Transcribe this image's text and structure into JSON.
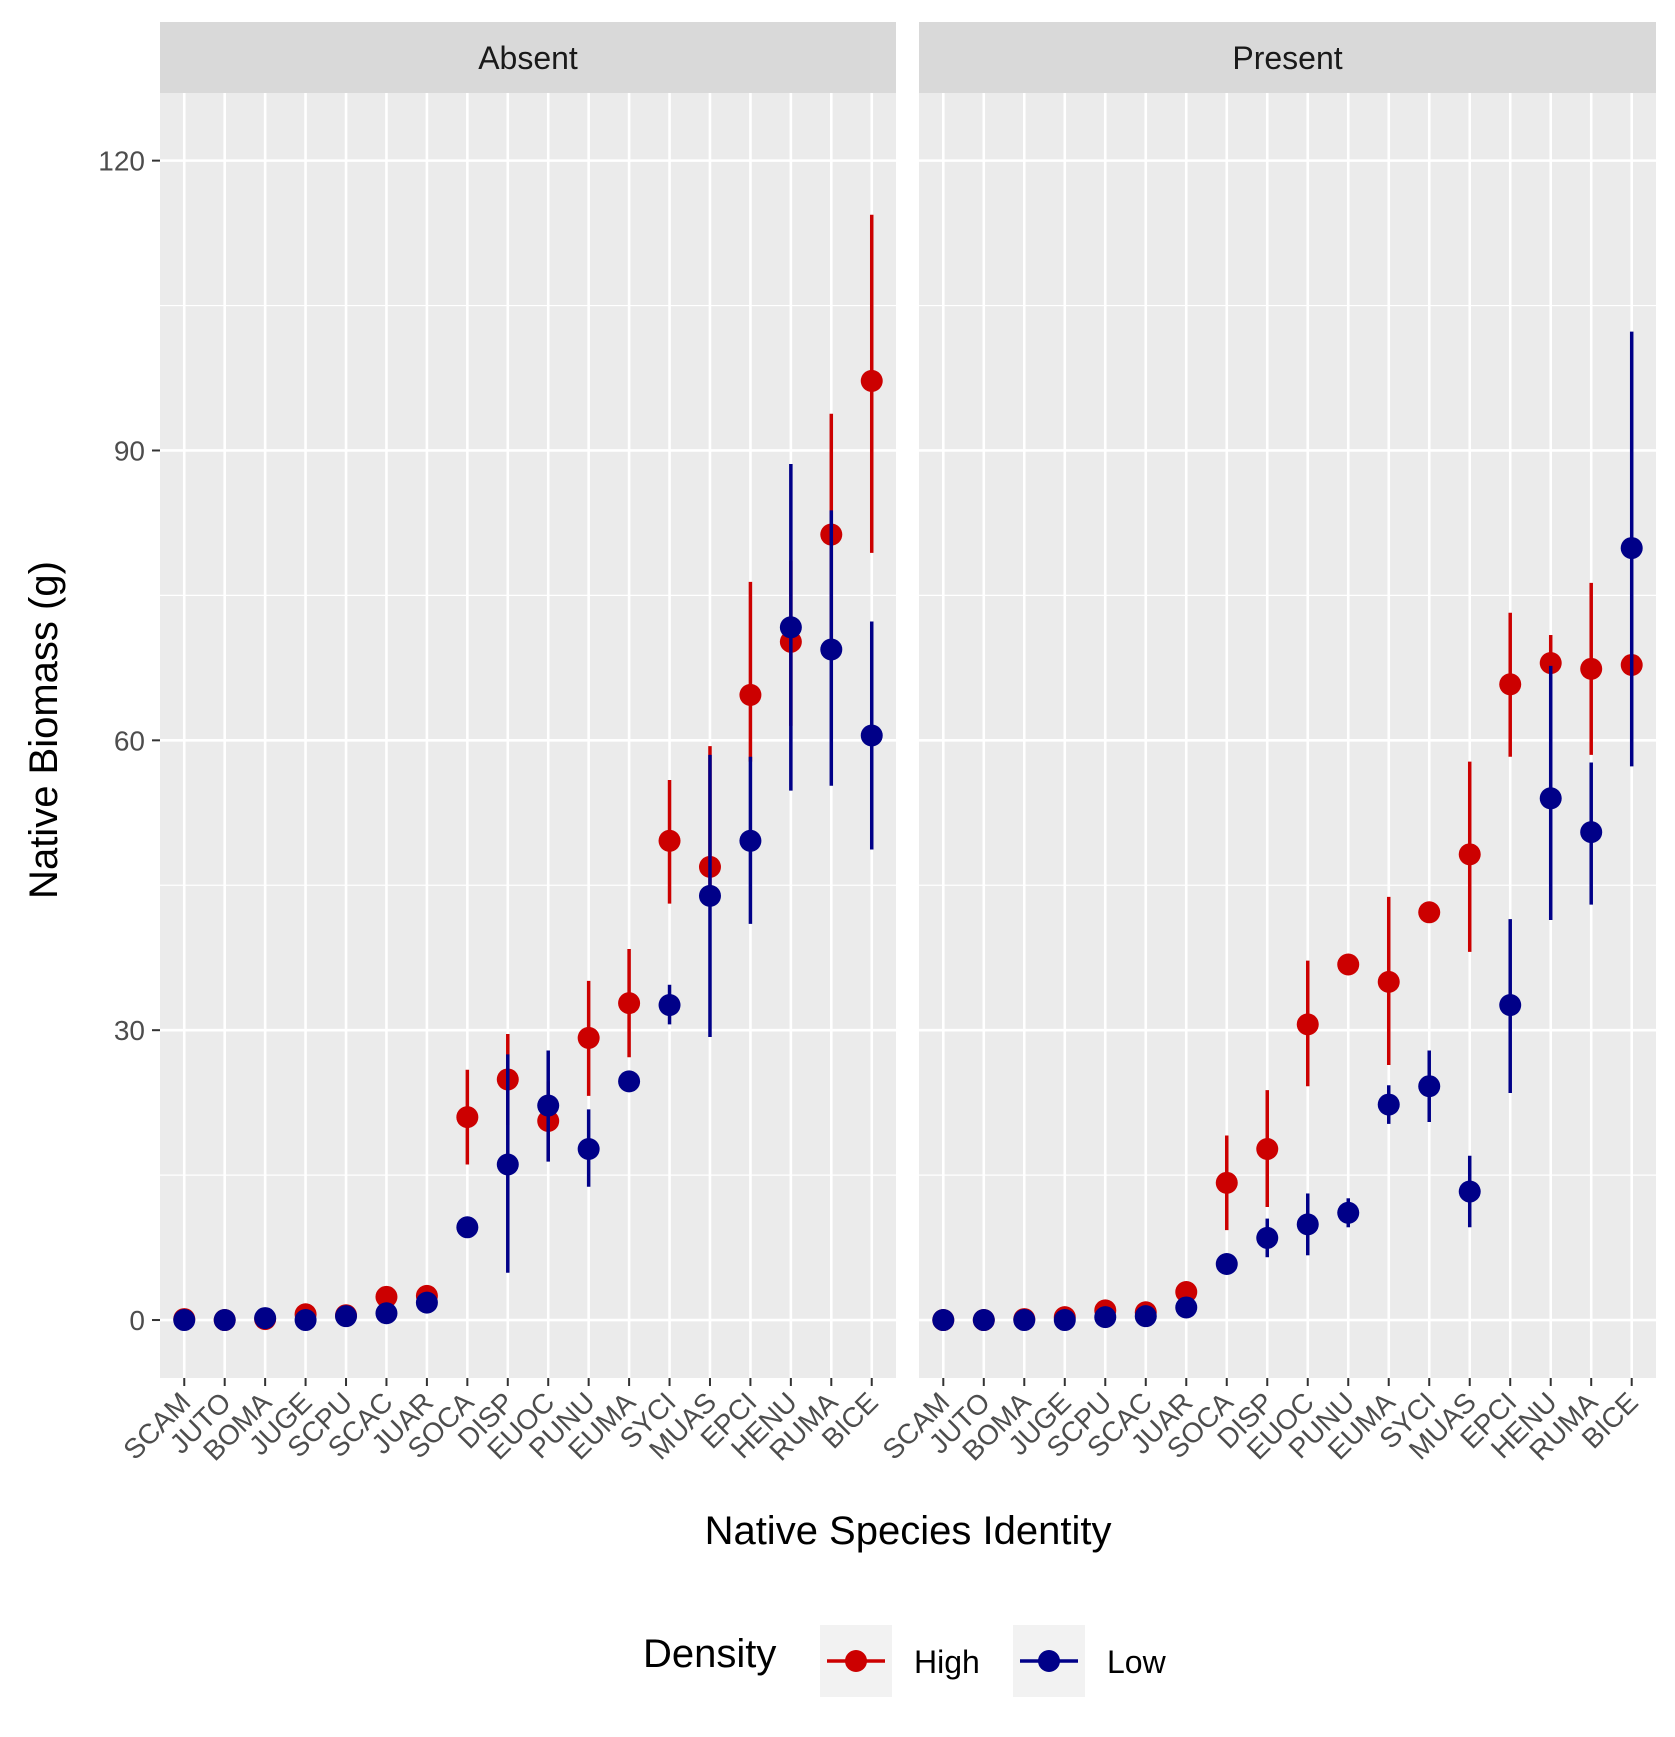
{
  "chart_data": {
    "type": "scatter",
    "ylabel": "Native Biomass (g)",
    "xlabel": "Native Species Identity",
    "ylim": [
      -6,
      127
    ],
    "yticks": [
      0,
      30,
      60,
      90,
      120
    ],
    "grid": true,
    "legend": {
      "title": "Density",
      "position": "bottom"
    },
    "categories": [
      "SCAM",
      "JUTO",
      "BOMA",
      "JUGE",
      "SCPU",
      "SCAC",
      "JUAR",
      "SOCA",
      "DISP",
      "EUOC",
      "PUNU",
      "EUMA",
      "SYCI",
      "MUAS",
      "EPCI",
      "HENU",
      "RUMA",
      "BICE"
    ],
    "colors": {
      "High": "#cc0000",
      "Low": "#000088"
    },
    "panels": [
      {
        "label": "Absent",
        "series": [
          {
            "name": "High",
            "values": [
              0.1,
              0.0,
              0.1,
              0.6,
              0.5,
              2.4,
              2.5,
              21.0,
              24.9,
              20.6,
              29.2,
              32.8,
              49.6,
              46.9,
              64.7,
              70.2,
              81.3,
              97.2
            ],
            "lower": [
              0.0,
              0.0,
              0.0,
              0.3,
              0.2,
              1.8,
              1.9,
              16.1,
              20.2,
              16.5,
              23.2,
              27.2,
              43.1,
              42.9,
              57.8,
              61.5,
              69.2,
              79.4
            ],
            "upper": [
              0.2,
              0.1,
              0.3,
              0.9,
              0.8,
              3.0,
              3.1,
              25.9,
              29.6,
              24.7,
              35.1,
              38.4,
              55.9,
              59.4,
              76.4,
              78.6,
              93.8,
              114.4
            ]
          },
          {
            "name": "Low",
            "values": [
              0.0,
              0.0,
              0.2,
              0.0,
              0.4,
              0.7,
              1.8,
              9.6,
              16.1,
              22.2,
              17.7,
              24.7,
              32.6,
              43.9,
              49.6,
              71.7,
              69.4,
              60.5
            ],
            "lower": [
              0.0,
              0.0,
              0.0,
              0.0,
              0.1,
              0.3,
              1.2,
              9.6,
              4.9,
              16.4,
              13.8,
              24.7,
              30.6,
              29.3,
              41.0,
              54.8,
              55.3,
              48.7
            ],
            "upper": [
              0.1,
              0.1,
              0.4,
              0.1,
              0.7,
              1.1,
              2.4,
              9.6,
              27.5,
              27.9,
              21.8,
              24.7,
              34.7,
              58.5,
              58.3,
              88.6,
              83.8,
              72.3
            ]
          }
        ]
      },
      {
        "label": "Present",
        "series": [
          {
            "name": "High",
            "values": [
              0.0,
              0.0,
              0.1,
              0.3,
              1.0,
              0.8,
              2.9,
              14.2,
              17.7,
              30.6,
              36.8,
              35.0,
              42.2,
              48.2,
              65.8,
              68.0,
              67.4,
              67.8
            ],
            "lower": [
              0.0,
              0.0,
              0.0,
              0.1,
              0.5,
              0.4,
              2.3,
              9.3,
              11.7,
              24.2,
              35.8,
              26.4,
              42.2,
              38.1,
              58.3,
              67.0,
              58.5,
              67.8
            ],
            "upper": [
              0.1,
              0.1,
              0.2,
              0.5,
              1.5,
              1.2,
              3.5,
              19.1,
              23.8,
              37.2,
              37.8,
              43.8,
              42.2,
              57.8,
              73.2,
              70.9,
              76.3,
              67.8
            ]
          },
          {
            "name": "Low",
            "values": [
              0.0,
              0.0,
              0.0,
              0.0,
              0.3,
              0.4,
              1.3,
              5.8,
              8.5,
              9.9,
              11.1,
              22.3,
              24.2,
              13.3,
              32.6,
              54.0,
              50.5,
              79.9
            ],
            "lower": [
              0.0,
              0.0,
              0.0,
              0.0,
              0.1,
              0.1,
              0.8,
              5.8,
              6.5,
              6.7,
              9.6,
              20.3,
              20.5,
              9.6,
              23.5,
              41.4,
              43.0,
              57.3
            ],
            "upper": [
              0.1,
              0.1,
              0.1,
              0.1,
              0.5,
              0.7,
              1.8,
              5.8,
              10.5,
              13.1,
              12.6,
              24.3,
              27.9,
              17.0,
              41.5,
              67.7,
              57.7,
              102.3
            ]
          }
        ]
      }
    ]
  }
}
